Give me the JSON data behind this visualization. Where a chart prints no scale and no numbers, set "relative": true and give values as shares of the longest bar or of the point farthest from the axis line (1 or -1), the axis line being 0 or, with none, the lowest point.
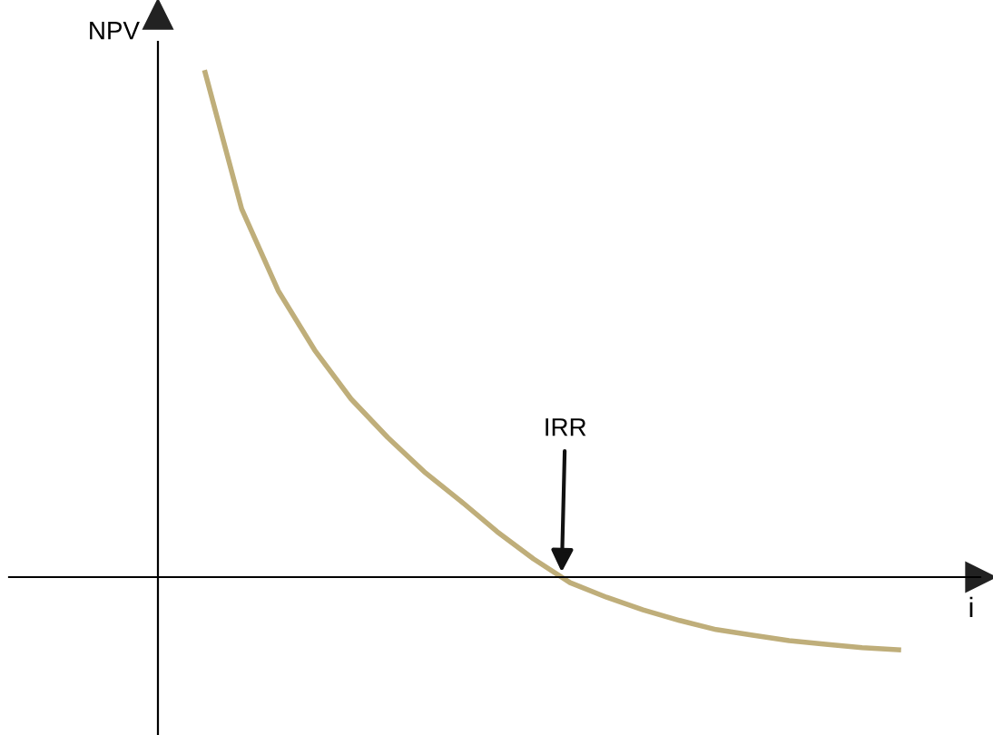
{
  "chart_data": {
    "type": "line",
    "relative": true,
    "xlabel": "i",
    "ylabel": "NPV",
    "categories": [
      null,
      null,
      null,
      null,
      null,
      null,
      null,
      null,
      null,
      null,
      null,
      null,
      null,
      null,
      null,
      null,
      null,
      null,
      null,
      null
    ],
    "series": [
      {
        "color": "#bfae7a",
        "values": [
          1.0,
          0.73,
          0.568,
          0.45,
          0.353,
          0.277,
          0.209,
          0.151,
          0.09,
          0.036,
          -0.011,
          -0.04,
          -0.065,
          -0.086,
          -0.104,
          -0.115,
          -0.126,
          -0.133,
          -0.14,
          -0.144
        ]
      }
    ],
    "annotations": [
      "IRR"
    ],
    "legend": false,
    "marker": "none",
    "line_style": "solid"
  }
}
